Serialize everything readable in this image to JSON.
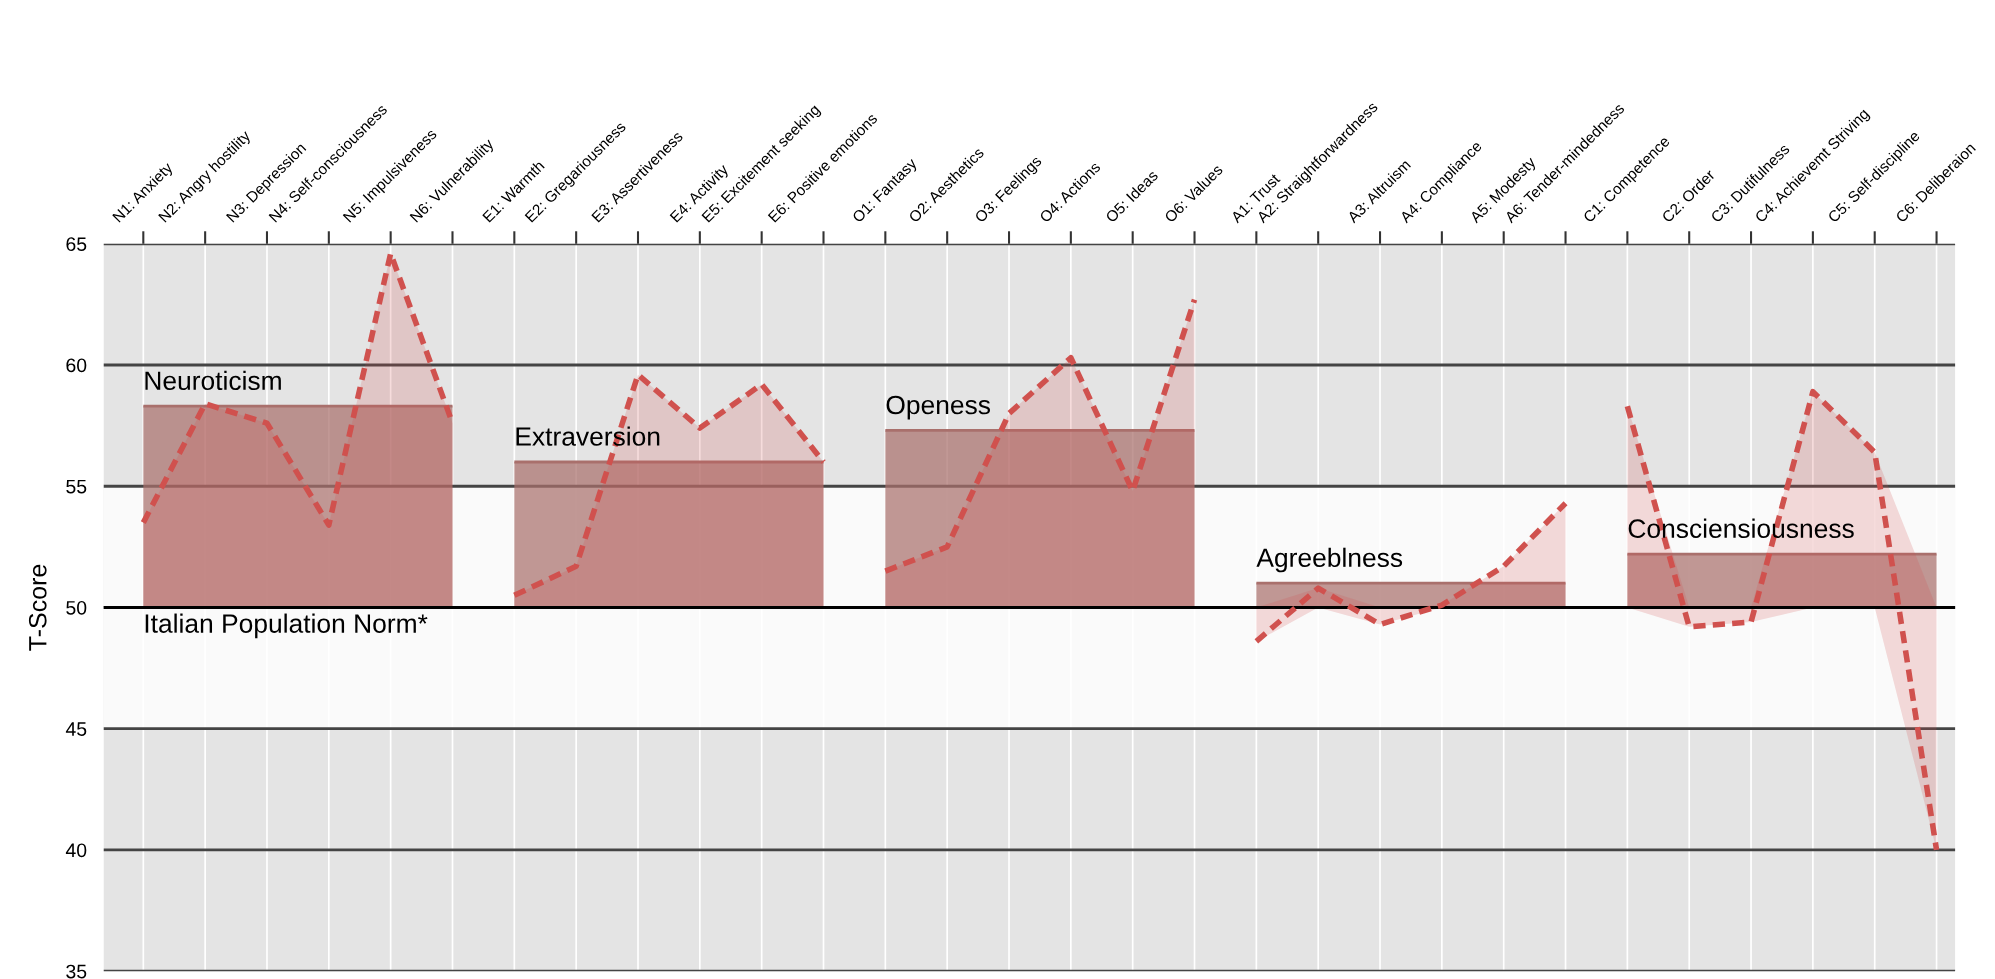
{
  "chart_data": {
    "type": "line",
    "ylabel": "T-Score",
    "categories": [
      "N1: Anxiety",
      "N2: Angry hostility",
      "N3: Depression",
      "N4: Self-consciousness",
      "N5: Impulsiveness",
      "N6: Vulnerability",
      "E1: Warmth",
      "E2: Gregariousness",
      "E3: Assertiveness",
      "E4: Activity",
      "E5: Excitement seeking",
      "E6: Positive emotions",
      "O1: Fantasy",
      "O2: Aesthetics",
      "O3: Feelings",
      "O4: Actions",
      "O5: Ideas",
      "O6: Values",
      "A1: Trust",
      "A2: Straightforwardness",
      "A3: Altruism",
      "A4: Compliance",
      "A5: Modesty",
      "A6: Tender-mindedness",
      "C1: Competence",
      "C2: Order",
      "C3: Dutifulness",
      "C4: Achievemt Striving",
      "C5: Self-discipline",
      "C6: Deliberaion"
    ],
    "series": [
      {
        "name": "Neuroticism",
        "line_style": "solid",
        "color": "#a9706c",
        "values": [
          58.3,
          58.3,
          58.3,
          58.3,
          58.3,
          58.3,
          null,
          null,
          null,
          null,
          null,
          null,
          null,
          null,
          null,
          null,
          null,
          null,
          null,
          null,
          null,
          null,
          null,
          null,
          null,
          null,
          null,
          null,
          null,
          null
        ],
        "lower": [
          50,
          50,
          50,
          50,
          50,
          50,
          null,
          null,
          null,
          null,
          null,
          null,
          null,
          null,
          null,
          null,
          null,
          null,
          null,
          null,
          null,
          null,
          null,
          null,
          null,
          null,
          null,
          null,
          null,
          null
        ],
        "upper": [
          58.3,
          58.3,
          58.3,
          58.3,
          58.3,
          58.3,
          null,
          null,
          null,
          null,
          null,
          null,
          null,
          null,
          null,
          null,
          null,
          null,
          null,
          null,
          null,
          null,
          null,
          null,
          null,
          null,
          null,
          null,
          null,
          null
        ]
      },
      {
        "name": "Extraversion",
        "line_style": "solid",
        "color": "#a9706c",
        "values": [
          null,
          null,
          null,
          null,
          null,
          null,
          56.0,
          56.0,
          56.0,
          56.0,
          56.0,
          56.0,
          null,
          null,
          null,
          null,
          null,
          null,
          null,
          null,
          null,
          null,
          null,
          null,
          null,
          null,
          null,
          null,
          null,
          null
        ],
        "lower": [
          null,
          null,
          null,
          null,
          null,
          null,
          50,
          50,
          50,
          50,
          50,
          50,
          null,
          null,
          null,
          null,
          null,
          null,
          null,
          null,
          null,
          null,
          null,
          null,
          null,
          null,
          null,
          null,
          null,
          null
        ],
        "upper": [
          null,
          null,
          null,
          null,
          null,
          null,
          56.0,
          56.0,
          56.0,
          56.0,
          56.0,
          56.0,
          null,
          null,
          null,
          null,
          null,
          null,
          null,
          null,
          null,
          null,
          null,
          null,
          null,
          null,
          null,
          null,
          null,
          null
        ]
      },
      {
        "name": "Openess",
        "line_style": "solid",
        "color": "#a9706c",
        "values": [
          null,
          null,
          null,
          null,
          null,
          null,
          null,
          null,
          null,
          null,
          null,
          null,
          57.3,
          57.3,
          57.3,
          57.3,
          57.3,
          57.3,
          null,
          null,
          null,
          null,
          null,
          null,
          null,
          null,
          null,
          null,
          null,
          null
        ],
        "lower": [
          null,
          null,
          null,
          null,
          null,
          null,
          null,
          null,
          null,
          null,
          null,
          null,
          50,
          50,
          50,
          50,
          50,
          50,
          null,
          null,
          null,
          null,
          null,
          null,
          null,
          null,
          null,
          null,
          null,
          null
        ],
        "upper": [
          null,
          null,
          null,
          null,
          null,
          null,
          null,
          null,
          null,
          null,
          null,
          null,
          57.3,
          57.3,
          57.3,
          57.3,
          57.3,
          57.3,
          null,
          null,
          null,
          null,
          null,
          null,
          null,
          null,
          null,
          null,
          null,
          null
        ]
      },
      {
        "name": "Agreeblness",
        "line_style": "solid",
        "color": "#a9706c",
        "values": [
          null,
          null,
          null,
          null,
          null,
          null,
          null,
          null,
          null,
          null,
          null,
          null,
          null,
          null,
          null,
          null,
          null,
          null,
          51.0,
          51.0,
          51.0,
          51.0,
          51.0,
          51.0,
          null,
          null,
          null,
          null,
          null,
          null
        ],
        "lower": [
          null,
          null,
          null,
          null,
          null,
          null,
          null,
          null,
          null,
          null,
          null,
          null,
          null,
          null,
          null,
          null,
          null,
          null,
          50,
          50,
          50,
          50,
          50,
          50,
          null,
          null,
          null,
          null,
          null,
          null
        ],
        "upper": [
          null,
          null,
          null,
          null,
          null,
          null,
          null,
          null,
          null,
          null,
          null,
          null,
          null,
          null,
          null,
          null,
          null,
          null,
          51.0,
          51.0,
          51.0,
          51.0,
          51.0,
          51.0,
          null,
          null,
          null,
          null,
          null,
          null
        ]
      },
      {
        "name": "Consciensiousness",
        "line_style": "solid",
        "color": "#a9706c",
        "values": [
          null,
          null,
          null,
          null,
          null,
          null,
          null,
          null,
          null,
          null,
          null,
          null,
          null,
          null,
          null,
          null,
          null,
          null,
          null,
          null,
          null,
          null,
          null,
          null,
          52.2,
          52.2,
          52.2,
          52.2,
          52.2,
          52.2
        ],
        "lower": [
          null,
          null,
          null,
          null,
          null,
          null,
          null,
          null,
          null,
          null,
          null,
          null,
          null,
          null,
          null,
          null,
          null,
          null,
          null,
          null,
          null,
          null,
          null,
          null,
          50,
          50,
          50,
          50,
          50,
          50
        ],
        "upper": [
          null,
          null,
          null,
          null,
          null,
          null,
          null,
          null,
          null,
          null,
          null,
          null,
          null,
          null,
          null,
          null,
          null,
          null,
          null,
          null,
          null,
          null,
          null,
          null,
          52.2,
          52.2,
          52.2,
          52.2,
          52.2,
          52.2
        ]
      },
      {
        "line_style": "dashed",
        "color": "#d0514e",
        "values": [
          53.5,
          58.4,
          57.6,
          53.4,
          64.6,
          57.6,
          null,
          null,
          null,
          null,
          null,
          null,
          null,
          null,
          null,
          null,
          null,
          null,
          null,
          null,
          null,
          null,
          null,
          null,
          null,
          null,
          null,
          null,
          null,
          null
        ],
        "lower": [
          50,
          50,
          50,
          50,
          50,
          50,
          null,
          null,
          null,
          null,
          null,
          null,
          null,
          null,
          null,
          null,
          null,
          null,
          null,
          null,
          null,
          null,
          null,
          null,
          null,
          null,
          null,
          null,
          null,
          null
        ],
        "upper": [
          53.5,
          58.4,
          57.6,
          53.4,
          64.6,
          57.6,
          null,
          null,
          null,
          null,
          null,
          null,
          null,
          null,
          null,
          null,
          null,
          null,
          null,
          null,
          null,
          null,
          null,
          null,
          null,
          null,
          null,
          null,
          null,
          null
        ]
      },
      {
        "line_style": "dashed",
        "color": "#d0514e",
        "values": [
          null,
          null,
          null,
          null,
          null,
          null,
          50.5,
          51.7,
          59.6,
          57.4,
          59.2,
          56.0,
          null,
          null,
          null,
          null,
          null,
          null,
          null,
          null,
          null,
          null,
          null,
          null,
          null,
          null,
          null,
          null,
          null,
          null
        ],
        "lower": [
          null,
          null,
          null,
          null,
          null,
          null,
          50,
          50,
          50,
          50,
          50,
          50,
          null,
          null,
          null,
          null,
          null,
          null,
          null,
          null,
          null,
          null,
          null,
          null,
          null,
          null,
          null,
          null,
          null,
          null
        ],
        "upper": [
          null,
          null,
          null,
          null,
          null,
          null,
          50.5,
          51.7,
          59.6,
          57.4,
          59.2,
          56.0,
          null,
          null,
          null,
          null,
          null,
          null,
          null,
          null,
          null,
          null,
          null,
          null,
          null,
          null,
          null,
          null,
          null,
          null
        ]
      },
      {
        "line_style": "dashed",
        "color": "#d0514e",
        "values": [
          null,
          null,
          null,
          null,
          null,
          null,
          null,
          null,
          null,
          null,
          null,
          null,
          51.5,
          52.5,
          58.0,
          60.3,
          54.8,
          62.7,
          null,
          null,
          null,
          null,
          null,
          null,
          null,
          null,
          null,
          null,
          null,
          null
        ],
        "lower": [
          null,
          null,
          null,
          null,
          null,
          null,
          null,
          null,
          null,
          null,
          null,
          null,
          50,
          50,
          50,
          50,
          50,
          50,
          null,
          null,
          null,
          null,
          null,
          null,
          null,
          null,
          null,
          null,
          null,
          null
        ],
        "upper": [
          null,
          null,
          null,
          null,
          null,
          null,
          null,
          null,
          null,
          null,
          null,
          null,
          51.5,
          52.5,
          58.0,
          60.3,
          54.8,
          62.7,
          null,
          null,
          null,
          null,
          null,
          null,
          null,
          null,
          null,
          null,
          null,
          null
        ]
      },
      {
        "line_style": "dashed",
        "color": "#d0514e",
        "values": [
          null,
          null,
          null,
          null,
          null,
          null,
          null,
          null,
          null,
          null,
          null,
          null,
          null,
          null,
          null,
          null,
          null,
          null,
          48.6,
          50.8,
          49.3,
          50.1,
          51.7,
          54.3,
          null,
          null,
          null,
          null,
          null,
          null
        ],
        "lower": [
          null,
          null,
          null,
          null,
          null,
          null,
          null,
          null,
          null,
          null,
          null,
          null,
          null,
          null,
          null,
          null,
          null,
          null,
          48.6,
          50,
          49.3,
          50,
          50,
          50,
          null,
          null,
          null,
          null,
          null,
          null
        ],
        "upper": [
          null,
          null,
          null,
          null,
          null,
          null,
          null,
          null,
          null,
          null,
          null,
          null,
          null,
          null,
          null,
          null,
          null,
          null,
          50,
          50.8,
          50,
          50.1,
          51.7,
          54.3,
          null,
          null,
          null,
          null,
          null,
          null
        ]
      },
      {
        "line_style": "dashed",
        "color": "#d0514e",
        "values": [
          null,
          null,
          null,
          null,
          null,
          null,
          null,
          null,
          null,
          null,
          null,
          null,
          null,
          null,
          null,
          null,
          null,
          null,
          null,
          null,
          null,
          null,
          null,
          null,
          58.3,
          49.2,
          49.4,
          58.9,
          56.4,
          40.0
        ],
        "lower": [
          null,
          null,
          null,
          null,
          null,
          null,
          null,
          null,
          null,
          null,
          null,
          null,
          null,
          null,
          null,
          null,
          null,
          null,
          null,
          null,
          null,
          null,
          null,
          null,
          50,
          49.2,
          49.4,
          50,
          50,
          40.0
        ],
        "upper": [
          null,
          null,
          null,
          null,
          null,
          null,
          null,
          null,
          null,
          null,
          null,
          null,
          null,
          null,
          null,
          null,
          null,
          null,
          null,
          null,
          null,
          null,
          null,
          null,
          58.3,
          50,
          50,
          58.9,
          56.4,
          50
        ]
      }
    ],
    "ylim": [
      35,
      65
    ],
    "yticks": [
      35,
      40,
      45,
      50,
      55,
      60,
      65
    ],
    "grid": true,
    "ref_lines": [
      {
        "axis": "y",
        "value": 50,
        "label": "Italian Population Norm*",
        "color": "#000000"
      }
    ],
    "bands": [
      {
        "axis": "y",
        "from": 45,
        "to": 55,
        "color": "#fafafa"
      }
    ]
  }
}
